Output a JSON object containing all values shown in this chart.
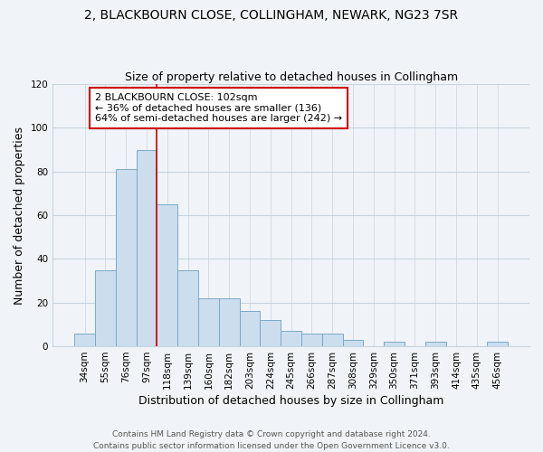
{
  "title": "2, BLACKBOURN CLOSE, COLLINGHAM, NEWARK, NG23 7SR",
  "subtitle": "Size of property relative to detached houses in Collingham",
  "xlabel": "Distribution of detached houses by size in Collingham",
  "ylabel": "Number of detached properties",
  "bar_color": "#ccdded",
  "bar_edge_color": "#7aaac8",
  "categories": [
    "34sqm",
    "55sqm",
    "76sqm",
    "97sqm",
    "118sqm",
    "139sqm",
    "160sqm",
    "182sqm",
    "203sqm",
    "224sqm",
    "245sqm",
    "266sqm",
    "287sqm",
    "308sqm",
    "329sqm",
    "350sqm",
    "371sqm",
    "393sqm",
    "414sqm",
    "435sqm",
    "456sqm"
  ],
  "values": [
    6,
    35,
    81,
    90,
    65,
    35,
    22,
    22,
    16,
    12,
    7,
    6,
    6,
    3,
    0,
    2,
    0,
    2,
    0,
    0,
    2
  ],
  "ylim": [
    0,
    120
  ],
  "yticks": [
    0,
    20,
    40,
    60,
    80,
    100,
    120
  ],
  "vline_index": 3,
  "vline_color": "#cc0000",
  "annotation_title": "2 BLACKBOURN CLOSE: 102sqm",
  "annotation_line1": "← 36% of detached houses are smaller (136)",
  "annotation_line2": "64% of semi-detached houses are larger (242) →",
  "annotation_box_color": "#ffffff",
  "annotation_box_edge": "#cc0000",
  "footer1": "Contains HM Land Registry data © Crown copyright and database right 2024.",
  "footer2": "Contains public sector information licensed under the Open Government Licence v3.0.",
  "background_color": "#f0f4f8",
  "plot_bg_color": "#f0f4f8",
  "grid_color": "#c8d4e0",
  "title_fontsize": 10,
  "subtitle_fontsize": 9,
  "axis_label_fontsize": 9,
  "tick_fontsize": 7.5,
  "annotation_fontsize": 8
}
